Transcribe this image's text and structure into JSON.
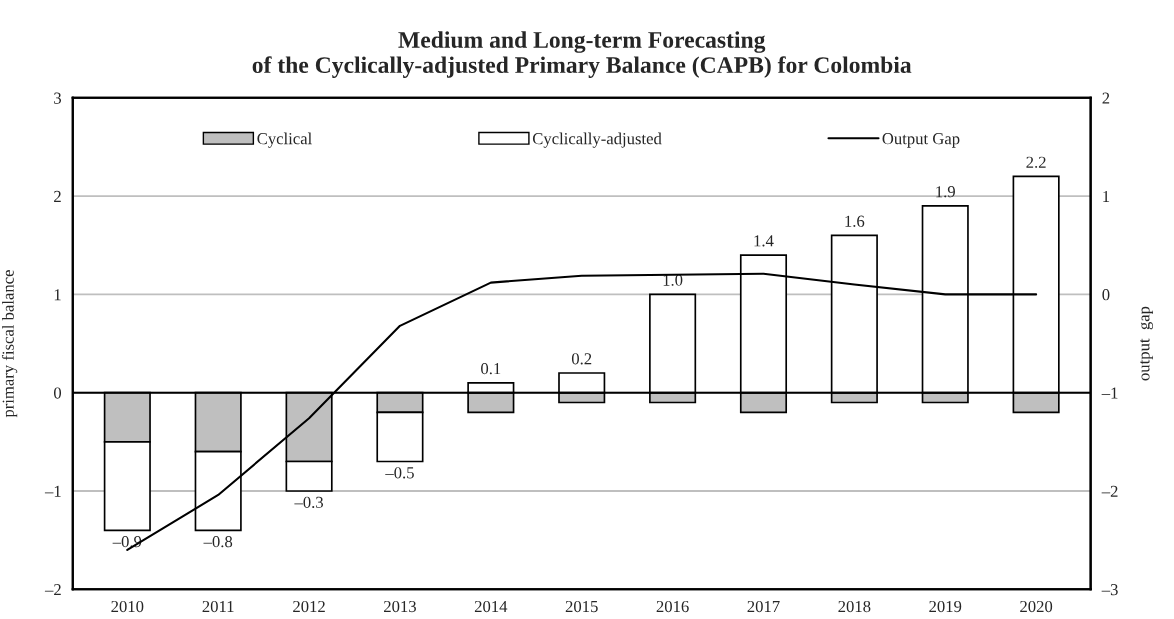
{
  "chart_data": {
    "type": "bar",
    "title": "Medium and Long-term Forecasting\nof the Cyclically-adjusted Primary Balance (CAPB) for Colombia",
    "ylabel": "primary fiscal balance",
    "y2label": "output  gap",
    "categories": [
      "2010",
      "2011",
      "2012",
      "2013",
      "2014",
      "2015",
      "2016",
      "2017",
      "2018",
      "2019",
      "2020"
    ],
    "stacked": true,
    "series": [
      {
        "name": "Cyclical",
        "color": "#bfbfbf",
        "values": [
          -0.5,
          -0.6,
          -0.7,
          -0.2,
          -0.2,
          -0.1,
          -0.1,
          -0.2,
          -0.1,
          -0.1,
          -0.2
        ]
      },
      {
        "name": "Cyclically-adjusted",
        "color": "#ffffff",
        "values": [
          -0.9,
          -0.8,
          -0.3,
          -0.5,
          0.1,
          0.2,
          1.0,
          1.4,
          1.6,
          1.9,
          2.2
        ],
        "value_labels": [
          "–0.9",
          "–0.8",
          "–0.3",
          "–0.5",
          "0.1",
          "0.2",
          "1.0",
          "1.4",
          "1.6",
          "1.9",
          "2.2"
        ]
      },
      {
        "name": "Output Gap",
        "type": "line",
        "axis": "y2",
        "color": "#000000",
        "values": [
          -2.6,
          -2.04,
          -1.26,
          -0.32,
          0.12,
          0.19,
          0.2,
          0.21,
          0.1,
          0.0,
          0.0
        ]
      }
    ],
    "ylim": [
      -2,
      3
    ],
    "yticks": [
      {
        "value": -2,
        "label": "–2"
      },
      {
        "value": -1,
        "label": "–1"
      },
      0,
      1,
      2,
      3
    ],
    "y2lim": [
      -3,
      2
    ],
    "y2ticks": [
      {
        "value": -3,
        "label": "–3"
      },
      {
        "value": -2,
        "label": "–2"
      },
      {
        "value": -1,
        "label": "–1"
      },
      0,
      1,
      2
    ],
    "grid": "y",
    "legend": "top",
    "marker": "none",
    "line_style": "solid"
  }
}
